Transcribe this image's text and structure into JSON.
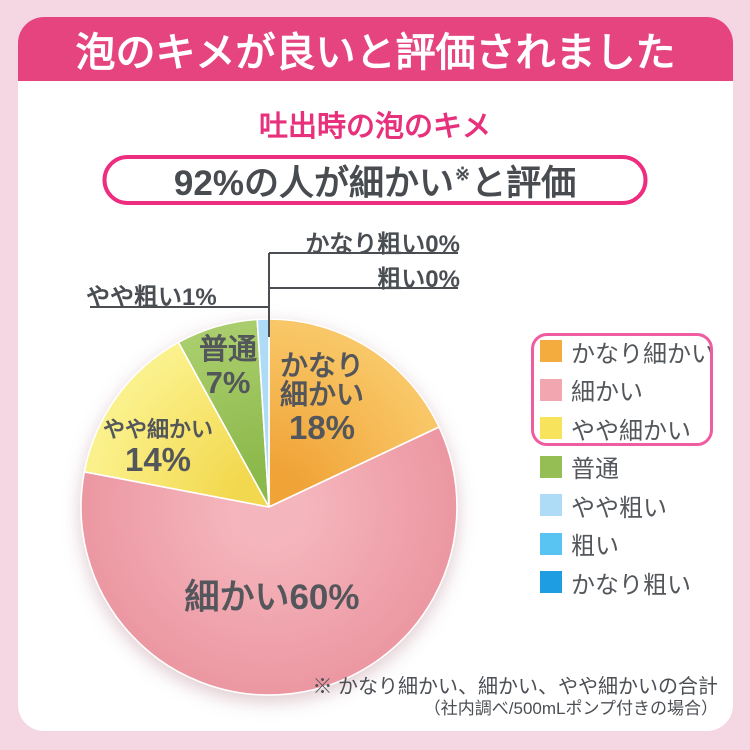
{
  "banner": {
    "title": "泡のキメが良いと評価されました",
    "background": "#E5447F"
  },
  "subtitle": {
    "text": "吐出時の泡のキメ",
    "color": "#E8317C"
  },
  "pill": {
    "before": "92%の人が細かい",
    "mark": "※",
    "after": "と評価"
  },
  "chart_data": {
    "type": "pie",
    "title": "吐出時の泡のキメ",
    "unit": "%",
    "direction": "clockwise",
    "start": "top",
    "slices": [
      {
        "label": "かなり細かい",
        "value": 18,
        "color": "#F5AC3E",
        "color_inner": "#F0A337",
        "color_outer": "#F9C767",
        "text_lines": [
          "かなり",
          "細かい",
          "18%"
        ]
      },
      {
        "label": "細かい",
        "value": 60,
        "color": "#F2A6AF",
        "color_inner": "#F5B5BC",
        "color_outer": "#EC98A3",
        "text_lines": [
          "細かい60%"
        ]
      },
      {
        "label": "やや細かい",
        "value": 14,
        "color": "#F7E35C",
        "color_inner": "#F2D84E",
        "color_outer": "#FBF18C",
        "text_lines": [
          "やや細かい",
          "14%"
        ]
      },
      {
        "label": "普通",
        "value": 7,
        "color": "#95BE55",
        "color_inner": "#8CB94B",
        "color_outer": "#A9CD6C",
        "text_lines": [
          "普通",
          "7%"
        ]
      },
      {
        "label": "やや粗い",
        "value": 1,
        "color": "#AEDCF6",
        "color_inner": "#AEDCF6",
        "color_outer": "#AEDCF6",
        "text_lines": []
      },
      {
        "label": "粗い",
        "value": 0,
        "color": "#59C3F1",
        "color_inner": "#59C3F1",
        "color_outer": "#59C3F1",
        "text_lines": []
      },
      {
        "label": "かなり粗い",
        "value": 0,
        "color": "#1E9DE2",
        "color_inner": "#1E9DE2",
        "color_outer": "#1E9DE2",
        "text_lines": []
      }
    ],
    "callouts": [
      {
        "label": "かなり粗い0%"
      },
      {
        "label": "粗い0%"
      },
      {
        "label": "やや粗い1%"
      }
    ],
    "legend": {
      "position": "right",
      "highlight_border": "#EF5C9F",
      "highlighted_labels": [
        "かなり細かい",
        "細かい",
        "やや細かい"
      ]
    }
  },
  "footnote": {
    "line1": "※ かなり細かい、細かい、やや細かいの合計",
    "line2": "（社内調べ/500mLポンプ付きの場合）"
  }
}
